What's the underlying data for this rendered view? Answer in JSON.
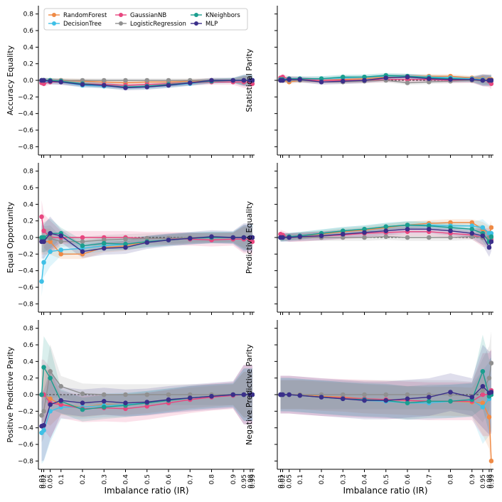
{
  "figure": {
    "xlabel": "Imbalance ratio (IR)",
    "x_ticks": [
      0.01,
      0.02,
      0.05,
      0.1,
      0.2,
      0.3,
      0.4,
      0.5,
      0.6,
      0.7,
      0.8,
      0.9,
      0.95,
      0.98,
      0.99
    ],
    "x_tick_labels": [
      "0.01",
      "0.02",
      "0.05",
      "0.1",
      "0.2",
      "0.3",
      "0.4",
      "0.5",
      "0.6",
      "0.7",
      "0.8",
      "0.9",
      "0.95",
      "0.98",
      "0.99"
    ],
    "y_ticks": [
      -0.8,
      -0.6,
      -0.4,
      -0.2,
      0.0,
      0.2,
      0.4,
      0.6,
      0.8
    ],
    "y_tick_labels": [
      "−0.8",
      "−0.6",
      "−0.4",
      "−0.2",
      "0.0",
      "0.2",
      "0.4",
      "0.6",
      "0.8"
    ],
    "ylim": [
      -0.9,
      0.9
    ],
    "xlim": [
      0.0,
      1.0
    ],
    "reference_line": 0.0
  },
  "legend": {
    "placement": "top-left",
    "entries": [
      {
        "name": "RandomForest",
        "color": "#ef8a45"
      },
      {
        "name": "DecisionTree",
        "color": "#3fc0e6"
      },
      {
        "name": "GaussianNB",
        "color": "#e8467f"
      },
      {
        "name": "LogisticRegression",
        "color": "#909090"
      },
      {
        "name": "KNeighbors",
        "color": "#1a9e8f"
      },
      {
        "name": "MLP",
        "color": "#3b2f8a"
      }
    ]
  },
  "chart_data": [
    {
      "type": "line",
      "title": "",
      "ylabel": "Accuracy Equality",
      "x": [
        0.01,
        0.02,
        0.05,
        0.1,
        0.2,
        0.3,
        0.4,
        0.5,
        0.6,
        0.7,
        0.8,
        0.9,
        0.95,
        0.98,
        0.99
      ],
      "series": [
        {
          "name": "RandomForest",
          "values": [
            0.0,
            0.0,
            0.0,
            0.0,
            -0.01,
            -0.02,
            -0.03,
            -0.02,
            -0.02,
            -0.01,
            0.0,
            0.0,
            0.0,
            0.0,
            0.0
          ]
        },
        {
          "name": "DecisionTree",
          "values": [
            -0.02,
            -0.02,
            -0.02,
            -0.02,
            -0.06,
            -0.07,
            -0.08,
            -0.08,
            -0.06,
            -0.04,
            -0.01,
            0.0,
            0.0,
            0.0,
            0.0
          ]
        },
        {
          "name": "GaussianNB",
          "values": [
            -0.03,
            -0.04,
            -0.02,
            -0.02,
            -0.04,
            -0.05,
            -0.06,
            -0.05,
            -0.04,
            -0.03,
            -0.02,
            -0.02,
            -0.02,
            -0.02,
            -0.04
          ]
        },
        {
          "name": "LogisticRegression",
          "values": [
            0.0,
            0.0,
            0.0,
            0.0,
            0.0,
            0.0,
            0.0,
            0.0,
            0.0,
            0.0,
            0.0,
            0.0,
            0.0,
            0.0,
            0.0
          ]
        },
        {
          "name": "KNeighbors",
          "values": [
            0.0,
            0.0,
            0.0,
            -0.01,
            -0.04,
            -0.06,
            -0.08,
            -0.07,
            -0.05,
            -0.03,
            -0.01,
            0.0,
            0.0,
            0.0,
            0.0
          ]
        },
        {
          "name": "MLP",
          "values": [
            0.0,
            0.0,
            -0.01,
            -0.02,
            -0.05,
            -0.06,
            -0.09,
            -0.08,
            -0.06,
            -0.03,
            0.0,
            0.0,
            0.0,
            0.0,
            0.0
          ]
        }
      ]
    },
    {
      "type": "line",
      "title": "",
      "ylabel": "Statistical Parity",
      "x": [
        0.01,
        0.02,
        0.05,
        0.1,
        0.2,
        0.3,
        0.4,
        0.5,
        0.6,
        0.7,
        0.8,
        0.9,
        0.95,
        0.98,
        0.99
      ],
      "series": [
        {
          "name": "RandomForest",
          "values": [
            0.0,
            0.0,
            -0.02,
            0.0,
            0.0,
            0.01,
            0.02,
            0.04,
            0.05,
            0.05,
            0.05,
            0.03,
            0.02,
            0.01,
            0.01
          ]
        },
        {
          "name": "DecisionTree",
          "values": [
            0.01,
            0.01,
            0.01,
            0.01,
            0.02,
            0.03,
            0.04,
            0.05,
            0.05,
            0.04,
            0.03,
            0.02,
            0.01,
            0.0,
            0.0
          ]
        },
        {
          "name": "GaussianNB",
          "values": [
            0.03,
            0.04,
            0.02,
            0.01,
            0.0,
            0.0,
            0.0,
            0.01,
            0.01,
            0.01,
            0.0,
            0.0,
            0.0,
            -0.01,
            -0.04
          ]
        },
        {
          "name": "LogisticRegression",
          "values": [
            0.0,
            0.0,
            0.0,
            0.0,
            -0.02,
            -0.02,
            -0.01,
            0.0,
            -0.03,
            -0.02,
            -0.01,
            0.0,
            0.0,
            0.0,
            0.0
          ]
        },
        {
          "name": "KNeighbors",
          "values": [
            0.01,
            0.01,
            0.02,
            0.02,
            0.02,
            0.04,
            0.04,
            0.06,
            0.05,
            0.03,
            0.02,
            0.01,
            0.0,
            0.0,
            0.0
          ]
        },
        {
          "name": "MLP",
          "values": [
            0.0,
            0.0,
            0.01,
            0.01,
            -0.02,
            -0.01,
            0.0,
            0.03,
            0.04,
            0.02,
            0.01,
            0.01,
            0.0,
            0.0,
            0.0
          ]
        }
      ]
    },
    {
      "type": "line",
      "title": "",
      "ylabel": "Equal Opportunity",
      "x": [
        0.01,
        0.02,
        0.05,
        0.1,
        0.2,
        0.3,
        0.4,
        0.5,
        0.6,
        0.7,
        0.8,
        0.9,
        0.95,
        0.98,
        0.99
      ],
      "series": [
        {
          "name": "RandomForest",
          "values": [
            -0.05,
            -0.05,
            -0.05,
            -0.2,
            -0.2,
            -0.12,
            -0.1,
            -0.05,
            -0.03,
            -0.01,
            0.0,
            0.0,
            0.0,
            0.0,
            0.0
          ]
        },
        {
          "name": "DecisionTree",
          "values": [
            -0.53,
            -0.3,
            -0.17,
            -0.15,
            -0.13,
            -0.1,
            -0.08,
            -0.05,
            -0.03,
            -0.01,
            0.0,
            0.0,
            0.0,
            0.0,
            0.0
          ]
        },
        {
          "name": "GaussianNB",
          "values": [
            0.25,
            0.08,
            0.0,
            0.0,
            0.0,
            0.0,
            0.0,
            -0.01,
            -0.01,
            -0.02,
            -0.03,
            -0.02,
            -0.02,
            -0.02,
            -0.05
          ]
        },
        {
          "name": "LogisticRegression",
          "values": [
            -0.02,
            -0.02,
            -0.01,
            -0.05,
            -0.05,
            -0.03,
            -0.02,
            -0.01,
            -0.01,
            0.0,
            0.0,
            0.0,
            0.0,
            0.0,
            0.0
          ]
        },
        {
          "name": "KNeighbors",
          "values": [
            0.0,
            0.0,
            0.05,
            0.05,
            -0.1,
            -0.07,
            -0.08,
            -0.05,
            -0.03,
            -0.01,
            0.0,
            0.0,
            0.0,
            0.0,
            0.0
          ]
        },
        {
          "name": "MLP",
          "values": [
            -0.05,
            -0.05,
            0.05,
            0.02,
            -0.17,
            -0.13,
            -0.12,
            -0.06,
            -0.03,
            -0.01,
            0.01,
            0.0,
            0.0,
            0.0,
            0.0
          ]
        }
      ]
    },
    {
      "type": "line",
      "title": "",
      "ylabel": "Predictive Equality",
      "x": [
        0.01,
        0.02,
        0.05,
        0.1,
        0.2,
        0.3,
        0.4,
        0.5,
        0.6,
        0.7,
        0.8,
        0.9,
        0.95,
        0.98,
        0.99
      ],
      "series": [
        {
          "name": "RandomForest",
          "values": [
            0.0,
            0.0,
            0.01,
            0.02,
            0.04,
            0.07,
            0.09,
            0.12,
            0.15,
            0.17,
            0.18,
            0.18,
            0.1,
            0.05,
            0.12
          ]
        },
        {
          "name": "DecisionTree",
          "values": [
            0.0,
            0.0,
            0.01,
            0.02,
            0.05,
            0.08,
            0.1,
            0.13,
            0.15,
            0.15,
            0.14,
            0.14,
            0.12,
            0.05,
            0.05
          ]
        },
        {
          "name": "GaussianNB",
          "values": [
            0.04,
            0.03,
            0.0,
            0.0,
            0.02,
            0.03,
            0.05,
            0.06,
            0.07,
            0.07,
            0.05,
            0.03,
            0.0,
            0.0,
            -0.02
          ]
        },
        {
          "name": "LogisticRegression",
          "values": [
            0.0,
            0.0,
            0.0,
            0.0,
            0.0,
            0.0,
            0.0,
            0.01,
            0.0,
            0.0,
            0.0,
            0.01,
            0.0,
            0.0,
            0.0
          ]
        },
        {
          "name": "KNeighbors",
          "values": [
            0.0,
            0.0,
            0.01,
            0.02,
            0.05,
            0.08,
            0.1,
            0.13,
            0.15,
            0.14,
            0.12,
            0.1,
            0.05,
            -0.05,
            0.01
          ]
        },
        {
          "name": "MLP",
          "values": [
            0.0,
            0.0,
            0.0,
            0.01,
            0.02,
            0.04,
            0.06,
            0.08,
            0.1,
            0.1,
            0.08,
            0.05,
            0.02,
            -0.12,
            -0.05
          ]
        }
      ]
    },
    {
      "type": "line",
      "title": "",
      "ylabel": "Positive Predictive Parity",
      "x": [
        0.01,
        0.02,
        0.05,
        0.1,
        0.2,
        0.3,
        0.4,
        0.5,
        0.6,
        0.7,
        0.8,
        0.9,
        0.95,
        0.98,
        0.99
      ],
      "series": [
        {
          "name": "RandomForest",
          "values": [
            0.0,
            0.0,
            -0.05,
            -0.12,
            -0.15,
            -0.12,
            -0.12,
            -0.1,
            -0.07,
            -0.04,
            -0.02,
            0.0,
            0.0,
            0.0,
            0.0
          ]
        },
        {
          "name": "DecisionTree",
          "values": [
            -0.46,
            -0.43,
            -0.2,
            -0.15,
            -0.15,
            -0.13,
            -0.12,
            -0.1,
            -0.07,
            -0.04,
            -0.02,
            -0.01,
            0.0,
            0.0,
            0.0
          ]
        },
        {
          "name": "GaussianNB",
          "values": [
            0.0,
            0.0,
            -0.1,
            -0.12,
            -0.17,
            -0.16,
            -0.17,
            -0.14,
            -0.1,
            -0.06,
            -0.03,
            -0.01,
            0.0,
            0.0,
            0.0
          ]
        },
        {
          "name": "LogisticRegression",
          "values": [
            -0.25,
            -0.2,
            0.28,
            0.1,
            0.01,
            0.0,
            0.0,
            0.0,
            0.0,
            0.0,
            0.0,
            0.0,
            0.0,
            0.0,
            0.0
          ]
        },
        {
          "name": "KNeighbors",
          "values": [
            0.0,
            0.33,
            0.2,
            -0.08,
            -0.18,
            -0.15,
            -0.13,
            -0.1,
            -0.07,
            -0.04,
            -0.02,
            0.0,
            0.0,
            0.0,
            0.0
          ]
        },
        {
          "name": "MLP",
          "values": [
            -0.38,
            -0.37,
            -0.12,
            -0.07,
            -0.1,
            -0.08,
            -0.1,
            -0.09,
            -0.06,
            -0.04,
            -0.02,
            0.0,
            0.0,
            0.0,
            0.0
          ]
        }
      ]
    },
    {
      "type": "line",
      "title": "",
      "ylabel": "Negative Predictive Parity",
      "x": [
        0.01,
        0.02,
        0.05,
        0.1,
        0.2,
        0.3,
        0.4,
        0.5,
        0.6,
        0.7,
        0.8,
        0.9,
        0.95,
        0.98,
        0.99
      ],
      "series": [
        {
          "name": "RandomForest",
          "values": [
            0.0,
            0.0,
            0.0,
            0.0,
            -0.02,
            -0.03,
            -0.05,
            -0.06,
            -0.07,
            -0.08,
            -0.08,
            -0.09,
            -0.1,
            -0.27,
            -0.8
          ]
        },
        {
          "name": "DecisionTree",
          "values": [
            0.0,
            0.0,
            0.0,
            -0.01,
            -0.03,
            -0.05,
            -0.07,
            -0.08,
            -0.1,
            -0.1,
            -0.08,
            -0.07,
            -0.15,
            -0.05,
            0.05
          ]
        },
        {
          "name": "GaussianNB",
          "values": [
            0.0,
            0.0,
            0.0,
            -0.01,
            -0.03,
            -0.04,
            -0.05,
            -0.06,
            -0.07,
            -0.08,
            -0.08,
            -0.08,
            0.0,
            0.0,
            0.05
          ]
        },
        {
          "name": "LogisticRegression",
          "values": [
            0.0,
            0.0,
            0.0,
            0.0,
            0.0,
            0.0,
            0.0,
            0.0,
            0.0,
            0.0,
            0.0,
            -0.02,
            0.05,
            0.2,
            0.38
          ]
        },
        {
          "name": "KNeighbors",
          "values": [
            0.0,
            0.0,
            0.0,
            -0.01,
            -0.03,
            -0.05,
            -0.06,
            -0.07,
            -0.1,
            -0.08,
            -0.08,
            -0.06,
            0.28,
            -0.02,
            0.0
          ]
        },
        {
          "name": "MLP",
          "values": [
            0.0,
            0.0,
            0.0,
            -0.01,
            -0.03,
            -0.05,
            -0.07,
            -0.07,
            -0.05,
            -0.03,
            0.03,
            -0.03,
            0.1,
            0.02,
            0.03
          ]
        }
      ]
    }
  ]
}
